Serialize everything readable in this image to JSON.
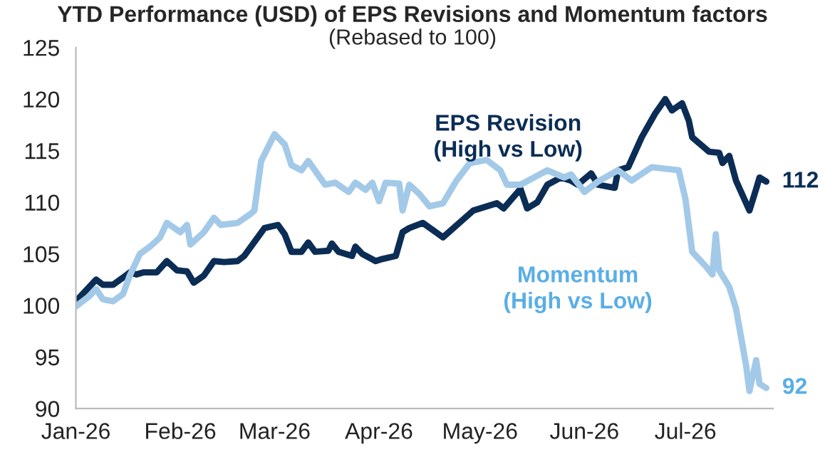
{
  "chart_data": {
    "type": "line",
    "title": "YTD Performance (USD) of EPS Revisions and Momentum factors",
    "subtitle": "(Rebased to 100)",
    "ylim": [
      90,
      125
    ],
    "yticks": [
      90,
      95,
      100,
      105,
      110,
      115,
      120,
      125
    ],
    "xlim": [
      "2026-01-01",
      "2026-07-27"
    ],
    "xticks": [
      {
        "value": "2026-01-01",
        "label": "Jan-26"
      },
      {
        "value": "2026-02-01",
        "label": "Feb-26"
      },
      {
        "value": "2026-03-01",
        "label": "Mar-26"
      },
      {
        "value": "2026-04-01",
        "label": "Apr-26"
      },
      {
        "value": "2026-05-01",
        "label": "May-26"
      },
      {
        "value": "2026-06-01",
        "label": "Jun-26"
      },
      {
        "value": "2026-07-01",
        "label": "Jul-26"
      }
    ],
    "grid": false,
    "legend": false,
    "series": [
      {
        "name": "EPS Revision\n(High vs Low)",
        "color": "#0b2d55",
        "x": [
          "2026-01-01",
          "2026-01-07",
          "2026-01-09",
          "2026-01-12",
          "2026-01-15",
          "2026-01-17",
          "2026-01-19",
          "2026-01-21",
          "2026-01-25",
          "2026-01-28",
          "2026-01-31",
          "2026-02-03",
          "2026-02-05",
          "2026-02-08",
          "2026-02-11",
          "2026-02-14",
          "2026-02-18",
          "2026-02-20",
          "2026-02-24",
          "2026-02-26",
          "2026-03-02",
          "2026-03-04",
          "2026-03-06",
          "2026-03-09",
          "2026-03-11",
          "2026-03-13",
          "2026-03-17",
          "2026-03-18",
          "2026-03-20",
          "2026-03-24",
          "2026-03-25",
          "2026-03-27",
          "2026-03-31",
          "2026-04-02",
          "2026-04-06",
          "2026-04-08",
          "2026-04-10",
          "2026-04-14",
          "2026-04-20",
          "2026-04-29",
          "2026-05-06",
          "2026-05-08",
          "2026-05-13",
          "2026-05-15",
          "2026-05-18",
          "2026-05-21",
          "2026-05-25",
          "2026-05-28",
          "2026-05-30",
          "2026-06-03",
          "2026-06-05",
          "2026-06-10",
          "2026-06-11",
          "2026-06-14",
          "2026-06-18",
          "2026-06-22",
          "2026-06-25",
          "2026-06-27",
          "2026-06-30",
          "2026-07-02",
          "2026-07-03",
          "2026-07-08",
          "2026-07-11",
          "2026-07-12",
          "2026-07-14",
          "2026-07-16",
          "2026-07-20",
          "2026-07-22",
          "2026-07-23",
          "2026-07-25"
        ],
        "values": [
          100.4,
          102.5,
          102,
          102,
          102.7,
          103.2,
          103,
          103.2,
          103.2,
          104.3,
          103.4,
          103.3,
          102.2,
          102.9,
          104.3,
          104.2,
          104.3,
          104.8,
          106.6,
          107.5,
          107.8,
          106.9,
          105.2,
          105.2,
          106.1,
          105.2,
          105.3,
          106,
          105.2,
          104.8,
          105.7,
          105,
          104.3,
          104.5,
          104.8,
          107.1,
          107.5,
          108,
          106.6,
          109.2,
          109.9,
          109.4,
          111.3,
          109.4,
          110,
          111.7,
          112.4,
          112.1,
          111.7,
          112.8,
          111.7,
          111.4,
          113.1,
          113.4,
          116.3,
          118.6,
          120,
          118.9,
          119.6,
          117.9,
          116.3,
          114.9,
          114.8,
          113.8,
          114.5,
          112.1,
          109.2,
          111.3,
          112.4,
          112
        ]
      },
      {
        "name": "Momentum\n(High vs Low)",
        "color": "#a3c9e8",
        "x": [
          "2026-01-01",
          "2026-01-05",
          "2026-01-07",
          "2026-01-09",
          "2026-01-12",
          "2026-01-15",
          "2026-01-17",
          "2026-01-20",
          "2026-01-23",
          "2026-01-26",
          "2026-01-28",
          "2026-02-01",
          "2026-02-03",
          "2026-02-04",
          "2026-02-08",
          "2026-02-11",
          "2026-02-13",
          "2026-02-18",
          "2026-02-22",
          "2026-02-23",
          "2026-02-25",
          "2026-03-01",
          "2026-03-04",
          "2026-03-06",
          "2026-03-09",
          "2026-03-11",
          "2026-03-16",
          "2026-03-19",
          "2026-03-23",
          "2026-03-25",
          "2026-03-28",
          "2026-03-30",
          "2026-04-01",
          "2026-04-03",
          "2026-04-07",
          "2026-04-08",
          "2026-04-10",
          "2026-04-13",
          "2026-04-16",
          "2026-04-20",
          "2026-04-24",
          "2026-04-28",
          "2026-05-03",
          "2026-05-07",
          "2026-05-09",
          "2026-05-13",
          "2026-05-17",
          "2026-05-21",
          "2026-05-26",
          "2026-05-28",
          "2026-06-01",
          "2026-06-05",
          "2026-06-11",
          "2026-06-15",
          "2026-06-21",
          "2026-06-29",
          "2026-07-01",
          "2026-07-03",
          "2026-07-07",
          "2026-07-09",
          "2026-07-10",
          "2026-07-11",
          "2026-07-14",
          "2026-07-16",
          "2026-07-19",
          "2026-07-20",
          "2026-07-22",
          "2026-07-23",
          "2026-07-25"
        ],
        "values": [
          99.9,
          100.9,
          101.6,
          100.6,
          100.4,
          101.1,
          102.9,
          105,
          105.7,
          106.6,
          108,
          107.1,
          107.8,
          105.9,
          107.1,
          108.5,
          107.8,
          108,
          108.9,
          109.2,
          114,
          116.6,
          115.6,
          113.6,
          113.1,
          114,
          111.7,
          111.9,
          111,
          111.9,
          111.2,
          111.9,
          110.1,
          111.9,
          111.8,
          109.2,
          111.7,
          110.8,
          109.6,
          109.9,
          112.1,
          113.8,
          114.1,
          113.1,
          111.7,
          111.7,
          112.4,
          113.1,
          112.4,
          112.7,
          111,
          112,
          113.1,
          112.1,
          113.4,
          113.1,
          110.3,
          105.2,
          103.8,
          103,
          106.9,
          103.4,
          101.8,
          99.7,
          94.2,
          91.7,
          94.7,
          92.4,
          92
        ]
      }
    ],
    "annotations": [
      {
        "text": "112",
        "x": "2026-07-25",
        "y": 112
      },
      {
        "text": "92",
        "x": "2026-07-25",
        "y": 92
      }
    ]
  }
}
